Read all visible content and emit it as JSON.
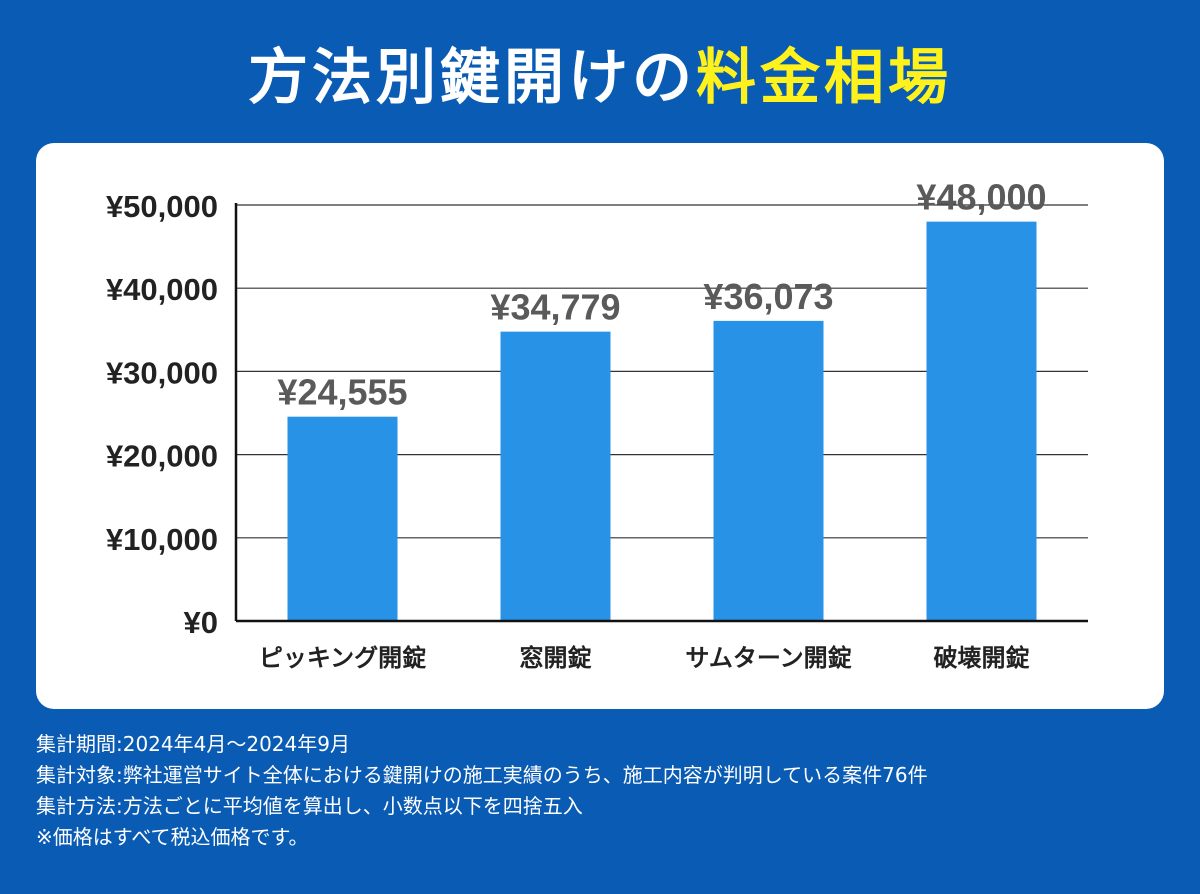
{
  "header": {
    "title_main": "方法別鍵開けの",
    "title_accent": "料金相場",
    "accent_color": "#fff21c"
  },
  "chart_data": {
    "type": "bar",
    "categories": [
      "ピッキング開錠",
      "窓開錠",
      "サムターン開錠",
      "破壊開錠"
    ],
    "values": [
      24555,
      34779,
      36073,
      48000
    ],
    "value_labels": [
      "¥24,555",
      "¥34,779",
      "¥36,073",
      "¥48,000"
    ],
    "ylim": [
      0,
      50000
    ],
    "yticks": [
      0,
      10000,
      20000,
      30000,
      40000,
      50000
    ],
    "ytick_labels": [
      "¥0",
      "¥10,000",
      "¥20,000",
      "¥30,000",
      "¥40,000",
      "¥50,000"
    ],
    "title": "",
    "xlabel": "",
    "ylabel": "",
    "grid": true,
    "bar_color": "#2892e6"
  },
  "notes": [
    "集計期間:2024年4月～2024年9月",
    "集計対象:弊社運営サイト全体における鍵開けの施工実績のうち、施工内容が判明している案件76件",
    "集計方法:方法ごとに平均値を算出し、小数点以下を四捨五入",
    "※価格はすべて税込価格です。"
  ]
}
